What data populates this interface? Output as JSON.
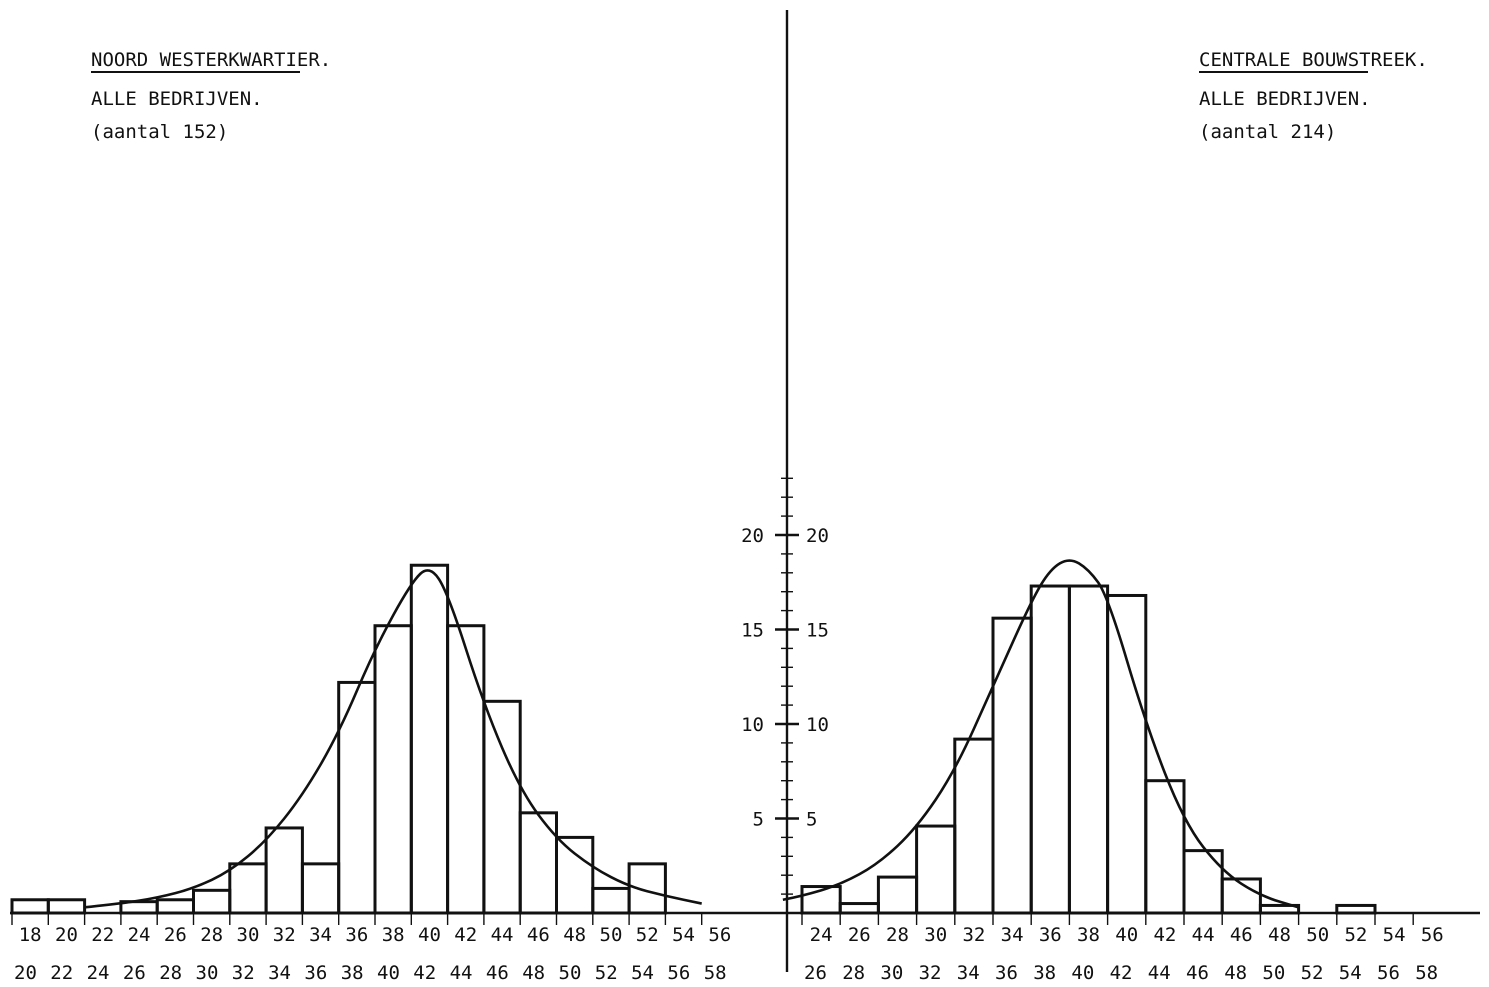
{
  "chart_data": [
    {
      "type": "bar",
      "title": "NOORD WESTERKWARTIER.",
      "subtitle": "ALLE BEDRIJVEN.",
      "count_label": "(aantal 152)",
      "x_bins": [
        [
          18,
          20
        ],
        [
          20,
          22
        ],
        [
          22,
          24
        ],
        [
          24,
          26
        ],
        [
          26,
          28
        ],
        [
          28,
          30
        ],
        [
          30,
          32
        ],
        [
          32,
          34
        ],
        [
          34,
          36
        ],
        [
          36,
          38
        ],
        [
          38,
          40
        ],
        [
          40,
          42
        ],
        [
          42,
          44
        ],
        [
          44,
          46
        ],
        [
          46,
          48
        ],
        [
          48,
          50
        ],
        [
          50,
          52
        ],
        [
          52,
          54
        ],
        [
          54,
          56
        ],
        [
          56,
          58
        ]
      ],
      "x_tick_labels_top": [
        "18",
        "20",
        "22",
        "24",
        "26",
        "28",
        "30",
        "32",
        "34",
        "36",
        "38",
        "40",
        "42",
        "44",
        "46",
        "48",
        "50",
        "52",
        "54",
        "56"
      ],
      "x_tick_labels_bottom": [
        "20",
        "22",
        "24",
        "26",
        "28",
        "30",
        "32",
        "34",
        "36",
        "38",
        "40",
        "42",
        "44",
        "46",
        "48",
        "50",
        "52",
        "54",
        "56",
        "58"
      ],
      "values": [
        0.7,
        0.7,
        0,
        0.6,
        0.7,
        1.2,
        2.6,
        4.5,
        2.6,
        12.2,
        15.2,
        18.4,
        15.2,
        11.2,
        5.3,
        4.0,
        1.3,
        2.6,
        0,
        0
      ],
      "fitted_curve": {
        "x": [
          22,
          24,
          26,
          28,
          30,
          32,
          34,
          36,
          38,
          40,
          41,
          42,
          44,
          46,
          48,
          50,
          52,
          54,
          56
        ],
        "y": [
          0.3,
          0.5,
          0.8,
          1.3,
          2.2,
          3.8,
          6.2,
          9.5,
          14.0,
          17.5,
          18.4,
          17.0,
          11.0,
          6.5,
          3.9,
          2.4,
          1.4,
          0.9,
          0.5
        ]
      },
      "ylim": [
        0,
        24
      ],
      "grid": false
    },
    {
      "type": "bar",
      "title": "CENTRALE BOUWSTREEK.",
      "subtitle": "ALLE BEDRIJVEN.",
      "count_label": "(aantal 214)",
      "x_bins": [
        [
          24,
          26
        ],
        [
          26,
          28
        ],
        [
          28,
          30
        ],
        [
          30,
          32
        ],
        [
          32,
          34
        ],
        [
          34,
          36
        ],
        [
          36,
          38
        ],
        [
          38,
          40
        ],
        [
          40,
          42
        ],
        [
          42,
          44
        ],
        [
          44,
          46
        ],
        [
          46,
          48
        ],
        [
          48,
          50
        ],
        [
          50,
          52
        ],
        [
          52,
          54
        ],
        [
          54,
          56
        ],
        [
          56,
          58
        ]
      ],
      "x_tick_labels_top": [
        "24",
        "26",
        "28",
        "30",
        "32",
        "34",
        "36",
        "38",
        "40",
        "42",
        "44",
        "46",
        "48",
        "50",
        "52",
        "54",
        "56"
      ],
      "x_tick_labels_bottom": [
        "26",
        "28",
        "30",
        "32",
        "34",
        "36",
        "38",
        "40",
        "42",
        "44",
        "46",
        "48",
        "50",
        "52",
        "54",
        "56",
        "58"
      ],
      "values": [
        1.4,
        0.5,
        1.9,
        4.6,
        9.2,
        15.6,
        17.3,
        17.3,
        16.8,
        7.0,
        3.3,
        1.8,
        0.4,
        0,
        0.4,
        0,
        0
      ],
      "fitted_curve": {
        "x": [
          23,
          24,
          26,
          28,
          30,
          32,
          34,
          36,
          37,
          38,
          39,
          40,
          42,
          44,
          46,
          48,
          50
        ],
        "y": [
          0.7,
          0.9,
          1.5,
          2.6,
          4.5,
          7.5,
          12.0,
          16.5,
          18.2,
          18.8,
          18.2,
          16.8,
          10.0,
          4.8,
          2.2,
          0.9,
          0.3
        ]
      },
      "ylim": [
        0,
        24
      ],
      "grid": false
    }
  ],
  "y_axis": {
    "tick_labels": [
      "5",
      "10",
      "15",
      "20"
    ],
    "tick_values": [
      5,
      10,
      15,
      20
    ]
  }
}
